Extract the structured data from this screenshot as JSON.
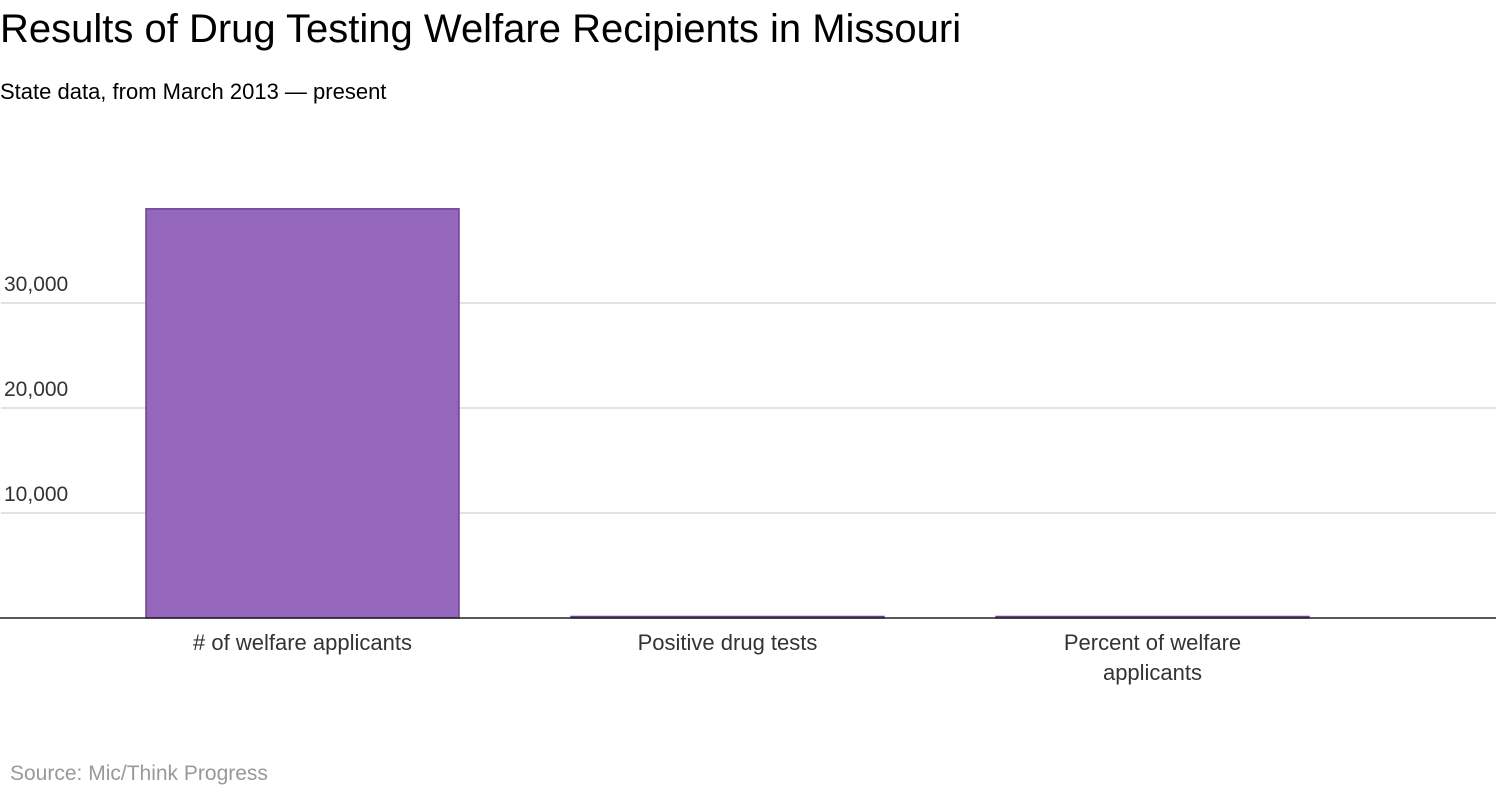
{
  "colors": {
    "bar": "#9467bd",
    "bar_stroke": "#6b4490",
    "grid": "#d9d9d9",
    "axis": "#222222"
  },
  "chart_data": {
    "type": "bar",
    "title": "Results of Drug Testing Welfare Recipients in Missouri",
    "subtitle": "State data, from March 2013 — present",
    "categories": [
      [
        "# of welfare applicants"
      ],
      [
        "Positive drug tests"
      ],
      [
        "Percent of welfare",
        "applicants"
      ]
    ],
    "values": [
      38970,
      48,
      0.12
    ],
    "ylim": [
      0,
      40000
    ],
    "yticks": [
      {
        "value": 10000,
        "label": "10,000"
      },
      {
        "value": 20000,
        "label": "20,000"
      },
      {
        "value": 30000,
        "label": "30,000"
      }
    ],
    "grid": true,
    "legend": "none",
    "source": "Source: Mic/Think Progress"
  }
}
